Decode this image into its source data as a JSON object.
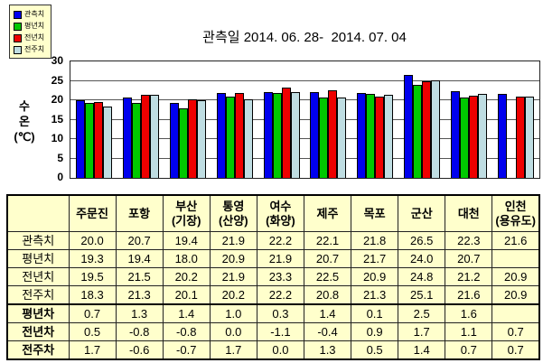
{
  "colors": {
    "panel_bg": "#FFFFCC",
    "series_blue": "#0000EE",
    "series_green": "#00C800",
    "series_red": "#EE0000",
    "series_pale": "#BFDDE2"
  },
  "chart_data": {
    "type": "bar",
    "title": "관측일 2014. 06. 28-  2014. 07. 04",
    "ylabel_lines": [
      "수",
      "온",
      "(℃)"
    ],
    "ylim": [
      0,
      30
    ],
    "yticks": [
      0,
      5,
      10,
      15,
      20,
      25,
      30
    ],
    "grid": true,
    "legend_position": "top-left",
    "categories": [
      "주문진",
      "포항",
      "부산(기장)",
      "통영(산양)",
      "여수(화양)",
      "제주",
      "목포",
      "군산",
      "대천",
      "인천(용유도)"
    ],
    "series": [
      {
        "name": "관측치",
        "color": "#0000EE",
        "values": [
          20.0,
          20.7,
          19.4,
          21.9,
          22.2,
          22.1,
          21.8,
          26.5,
          22.3,
          21.6
        ]
      },
      {
        "name": "평년치",
        "color": "#00C800",
        "values": [
          19.3,
          19.4,
          18.0,
          20.9,
          21.9,
          20.7,
          21.7,
          24.0,
          20.7,
          null
        ]
      },
      {
        "name": "전년치",
        "color": "#EE0000",
        "values": [
          19.5,
          21.5,
          20.2,
          21.9,
          23.3,
          22.5,
          20.9,
          24.8,
          21.2,
          20.9
        ]
      },
      {
        "name": "전주치",
        "color": "#BFDDE2",
        "values": [
          18.3,
          21.3,
          20.1,
          20.2,
          22.2,
          20.8,
          21.3,
          25.1,
          21.6,
          20.9
        ]
      }
    ]
  },
  "table": {
    "col_headers": [
      "",
      "주문진",
      "포항",
      "부산\n(기장)",
      "통영\n(산양)",
      "여수\n(화양)",
      "제주",
      "목포",
      "군산",
      "대천",
      "인천\n(용유도)"
    ],
    "value_rows": [
      {
        "label": "관측치",
        "values": [
          "20.0",
          "20.7",
          "19.4",
          "21.9",
          "22.2",
          "22.1",
          "21.8",
          "26.5",
          "22.3",
          "21.6"
        ]
      },
      {
        "label": "평년치",
        "values": [
          "19.3",
          "19.4",
          "18.0",
          "20.9",
          "21.9",
          "20.7",
          "21.7",
          "24.0",
          "20.7",
          ""
        ]
      },
      {
        "label": "전년치",
        "values": [
          "19.5",
          "21.5",
          "20.2",
          "21.9",
          "23.3",
          "22.5",
          "20.9",
          "24.8",
          "21.2",
          "20.9"
        ]
      },
      {
        "label": "전주치",
        "values": [
          "18.3",
          "21.3",
          "20.1",
          "20.2",
          "22.2",
          "20.8",
          "21.3",
          "25.1",
          "21.6",
          "20.9"
        ]
      }
    ],
    "diff_rows": [
      {
        "label": "평년차",
        "values": [
          "0.7",
          "1.3",
          "1.4",
          "1.0",
          "0.3",
          "1.4",
          "0.1",
          "2.5",
          "1.6",
          ""
        ]
      },
      {
        "label": "전년차",
        "values": [
          "0.5",
          "-0.8",
          "-0.8",
          "0.0",
          "-1.1",
          "-0.4",
          "0.9",
          "1.7",
          "1.1",
          "0.7"
        ]
      },
      {
        "label": "전주차",
        "values": [
          "1.7",
          "-0.6",
          "-0.7",
          "1.7",
          "0.0",
          "1.3",
          "0.5",
          "1.4",
          "0.7",
          "0.7"
        ]
      }
    ]
  }
}
